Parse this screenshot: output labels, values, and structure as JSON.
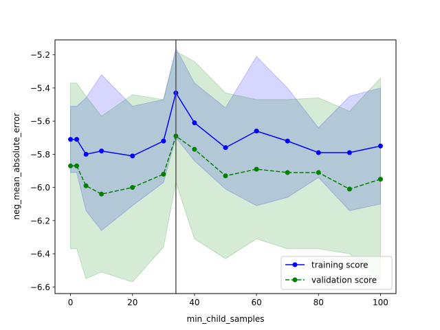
{
  "chart_data": {
    "type": "line",
    "title": "",
    "xlabel": "min_child_samples",
    "ylabel": "neg_mean_absolute_error",
    "xlim": [
      -5,
      105
    ],
    "ylim": [
      -6.64,
      -5.11
    ],
    "xticks": [
      0,
      20,
      40,
      60,
      80,
      100
    ],
    "yticks": [
      -6.6,
      -6.4,
      -6.2,
      -6.0,
      -5.8,
      -5.6,
      -5.4,
      -5.2
    ],
    "x": [
      0,
      2,
      5,
      10,
      20,
      30,
      34,
      40,
      50,
      60,
      70,
      80,
      90,
      100
    ],
    "vline_x": 34,
    "grid": false,
    "legend_position": "lower-right",
    "series": [
      {
        "name": "training score",
        "color": "#0000ff",
        "style": "solid",
        "values": [
          -5.71,
          -5.71,
          -5.8,
          -5.78,
          -5.81,
          -5.72,
          -5.43,
          -5.61,
          -5.76,
          -5.66,
          -5.72,
          -5.79,
          -5.79,
          -5.75
        ],
        "band_upper": [
          -5.51,
          -5.51,
          -5.46,
          -5.32,
          -5.51,
          -5.47,
          -5.16,
          -5.37,
          -5.52,
          -5.21,
          -5.4,
          -5.64,
          -5.45,
          -5.4
        ],
        "band_lower": [
          -5.91,
          -5.91,
          -6.14,
          -6.26,
          -6.11,
          -5.97,
          -5.7,
          -5.84,
          -6.01,
          -6.11,
          -6.06,
          -5.94,
          -6.14,
          -6.1
        ],
        "band_color": "#0000ff"
      },
      {
        "name": "validation score",
        "color": "#008000",
        "style": "dashed",
        "values": [
          -5.87,
          -5.87,
          -5.99,
          -6.04,
          -6.0,
          -5.92,
          -5.69,
          -5.77,
          -5.93,
          -5.89,
          -5.91,
          -5.91,
          -6.01,
          -5.95
        ],
        "band_upper": [
          -5.37,
          -5.37,
          -5.45,
          -5.57,
          -5.44,
          -5.47,
          -5.18,
          -5.24,
          -5.43,
          -5.47,
          -5.47,
          -5.46,
          -5.54,
          -5.34
        ],
        "band_lower": [
          -6.37,
          -6.37,
          -6.55,
          -6.51,
          -6.57,
          -6.36,
          -5.97,
          -6.31,
          -6.43,
          -6.31,
          -6.37,
          -6.37,
          -6.4,
          -6.56
        ],
        "band_color": "#008000"
      }
    ]
  }
}
